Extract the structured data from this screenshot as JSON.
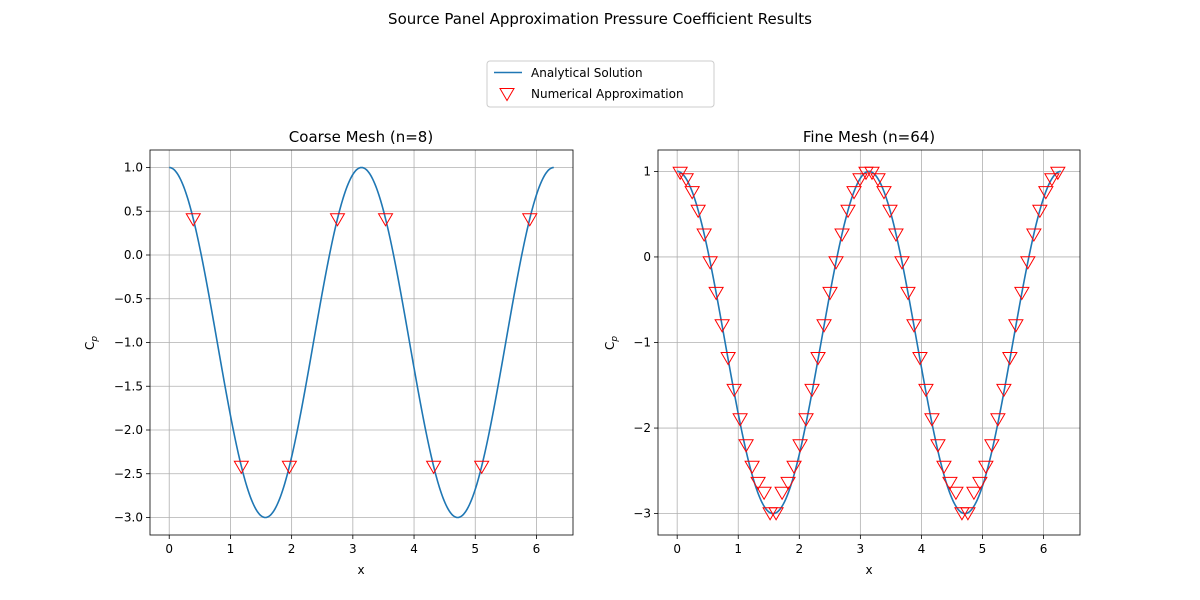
{
  "figure": {
    "title": "Source Panel Approximation Pressure Coefficient Results"
  },
  "legend": {
    "placement": "upper-center",
    "entries": [
      {
        "label": "Analytical Solution",
        "kind": "line",
        "color": "#1f77b4"
      },
      {
        "label": "Numerical Approximation",
        "kind": "marker",
        "marker": "triangle-down",
        "color": "#ff0000"
      }
    ]
  },
  "chart_data": [
    {
      "type": "line",
      "title": "Coarse Mesh (n=8)",
      "xlabel": "x",
      "ylabel": "C_p",
      "xlim": [
        -0.314,
        6.597
      ],
      "ylim": [
        -3.2,
        1.2
      ],
      "xticks": [
        0,
        1,
        2,
        3,
        4,
        5,
        6
      ],
      "yticks": [
        1.0,
        0.5,
        0.0,
        -0.5,
        -1.0,
        -1.5,
        -2.0,
        -2.5,
        -3.0
      ],
      "ytick_labels": [
        "1.0",
        "0.5",
        "0.0",
        "−0.5",
        "−1.0",
        "−1.5",
        "−2.0",
        "−2.5",
        "−3.0"
      ],
      "grid": true,
      "analytical": {
        "name": "Analytical Solution",
        "function": "1 - 4 sin^2(x)",
        "x_range": [
          0,
          6.2832
        ],
        "color": "#1f77b4"
      },
      "numerical": {
        "name": "Numerical Approximation",
        "x": [
          0.3927,
          1.1781,
          1.9635,
          2.7489,
          3.5343,
          4.3197,
          5.1051,
          5.8905
        ],
        "y": [
          0.4142,
          -2.4142,
          -2.4142,
          0.4142,
          0.4142,
          -2.4142,
          -2.4142,
          0.4142
        ],
        "color": "#ff0000"
      }
    },
    {
      "type": "line",
      "title": "Fine Mesh (n=64)",
      "xlabel": "x",
      "ylabel": "C_p",
      "xlim": [
        -0.314,
        6.597
      ],
      "ylim": [
        -3.25,
        1.25
      ],
      "xticks": [
        0,
        1,
        2,
        3,
        4,
        5,
        6
      ],
      "yticks": [
        1,
        0,
        -1,
        -2,
        -3
      ],
      "ytick_labels": [
        "1",
        "0",
        "−1",
        "−2",
        "−3"
      ],
      "grid": true,
      "analytical": {
        "name": "Analytical Solution",
        "function": "1 - 4 sin^2(x)",
        "x_range": [
          0,
          6.2832
        ],
        "color": "#1f77b4"
      },
      "numerical": {
        "name": "Numerical Approximation",
        "x": [
          0.0491,
          0.1473,
          0.2454,
          0.3436,
          0.4418,
          0.54,
          0.6381,
          0.7363,
          0.8345,
          0.9327,
          1.0308,
          1.129,
          1.2272,
          1.3254,
          1.4235,
          1.5217,
          1.6199,
          1.7181,
          1.8162,
          1.9144,
          2.0126,
          2.1108,
          2.2089,
          2.3071,
          2.4053,
          2.5035,
          2.6016,
          2.6998,
          2.798,
          2.8962,
          2.9943,
          3.0925,
          3.1907,
          3.2889,
          3.387,
          3.4852,
          3.5834,
          3.6816,
          3.7797,
          3.8779,
          3.9761,
          4.0743,
          4.1724,
          4.2706,
          4.3688,
          4.467,
          4.5651,
          4.6633,
          4.7615,
          4.8597,
          4.9578,
          5.056,
          5.1542,
          5.2524,
          5.3505,
          5.4487,
          5.5469,
          5.6451,
          5.7432,
          5.8414,
          5.9396,
          6.0378,
          6.1359,
          6.2341
        ],
        "y": [
          0.9904,
          0.9138,
          0.7634,
          0.5453,
          0.2686,
          -0.0556,
          -0.4143,
          -0.7929,
          -1.1756,
          -1.5472,
          -1.8918,
          -2.1956,
          -2.4467,
          -2.6342,
          -2.751,
          -2.9904,
          -2.9904,
          -2.751,
          -2.6342,
          -2.4467,
          -2.1956,
          -1.8918,
          -1.5472,
          -1.1756,
          -0.7929,
          -0.4143,
          -0.0556,
          0.2686,
          0.5453,
          0.7634,
          0.9138,
          0.9904,
          0.9904,
          0.9138,
          0.7634,
          0.5453,
          0.2686,
          -0.0556,
          -0.4143,
          -0.7929,
          -1.1756,
          -1.5472,
          -1.8918,
          -2.1956,
          -2.4467,
          -2.6342,
          -2.751,
          -2.9904,
          -2.9904,
          -2.751,
          -2.6342,
          -2.4467,
          -2.1956,
          -1.8918,
          -1.5472,
          -1.1756,
          -0.7929,
          -0.4143,
          -0.0556,
          0.2686,
          0.5453,
          0.7634,
          0.9138,
          0.9904
        ],
        "color": "#ff0000"
      }
    }
  ]
}
